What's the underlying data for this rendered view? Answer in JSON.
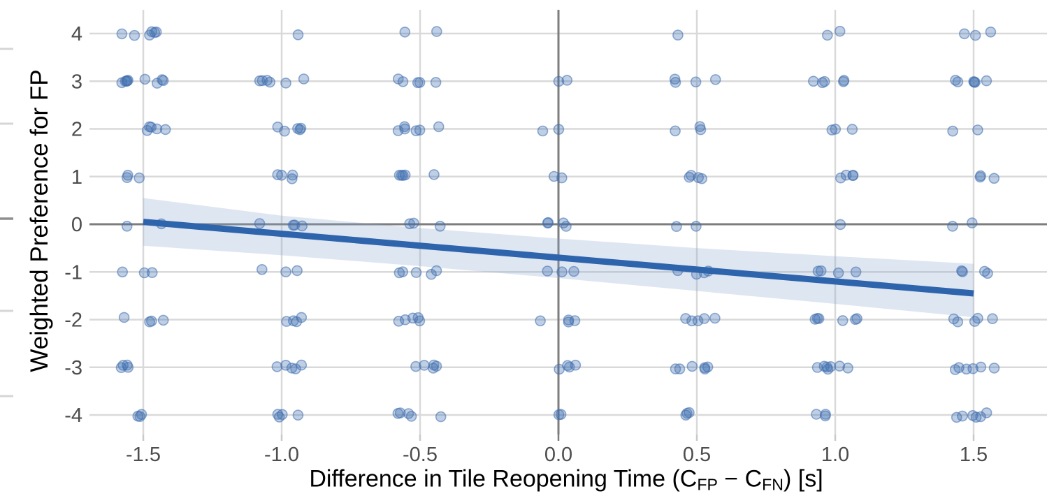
{
  "figure": {
    "y_axis": {
      "title": "Weighted Preference for FP"
    },
    "x_axis": {
      "title_prefix": "Difference in Tile Reopening Time (C",
      "sub_fp": "FP",
      "title_mid": " − C",
      "sub_fn": "FN",
      "title_suffix": ") [s]"
    },
    "cropped_left_ticks": [
      {
        "y": 70,
        "dark": false
      },
      {
        "y": 177,
        "dark": false
      },
      {
        "y": 313,
        "dark": true
      },
      {
        "y": 445,
        "dark": false
      },
      {
        "y": 567,
        "dark": false
      }
    ]
  },
  "chart_data": {
    "type": "scatter",
    "title": "",
    "xlabel": "Difference in Tile Reopening Time (C_FP − C_FN) [s]",
    "ylabel": "Weighted Preference for FP",
    "x_ticks": [
      -1.5,
      -1.0,
      -0.5,
      0.0,
      0.5,
      1.0,
      1.5
    ],
    "x_tick_labels": [
      "-1.5",
      "-1.0",
      "-0.5",
      "0.0",
      "0.5",
      "1.0",
      "1.5"
    ],
    "y_ticks": [
      4,
      3,
      2,
      1,
      0,
      -1,
      -2,
      -3,
      -4
    ],
    "y_tick_labels": [
      "4",
      "3",
      "2",
      "1",
      "0",
      "-1",
      "-2",
      "-3",
      "-4"
    ],
    "xlim": [
      -1.7,
      1.77
    ],
    "ylim": [
      -4.5,
      4.5
    ],
    "grid": true,
    "zero_reference_lines": {
      "x": 0,
      "y": 0
    },
    "points_per_cell": {
      "comment_x_levels": [
        -1.5,
        -1.0,
        -0.5,
        0.0,
        0.5,
        1.0,
        1.5
      ],
      "x_levels": [
        -1.5,
        -1.0,
        -0.5,
        0.0,
        0.5,
        1.0,
        1.5
      ],
      "y_levels": [
        4,
        3,
        2,
        1,
        0,
        -1,
        -2,
        -3,
        -4
      ],
      "counts": [
        [
          6,
          1,
          2,
          0,
          1,
          2,
          3
        ],
        [
          9,
          6,
          5,
          2,
          4,
          5,
          6
        ],
        [
          5,
          5,
          6,
          2,
          3,
          3,
          2
        ],
        [
          3,
          4,
          5,
          2,
          4,
          4,
          3
        ],
        [
          2,
          4,
          3,
          4,
          2,
          1,
          2
        ],
        [
          3,
          3,
          5,
          3,
          4,
          4,
          4
        ],
        [
          4,
          4,
          5,
          4,
          5,
          6,
          5
        ],
        [
          4,
          5,
          5,
          4,
          6,
          7,
          6
        ],
        [
          3,
          4,
          5,
          2,
          3,
          3,
          6
        ]
      ]
    },
    "jitter": {
      "x": 0.08,
      "y": 0.05
    },
    "regression_line": {
      "x": [
        -1.5,
        1.5
      ],
      "y": [
        0.05,
        -1.45
      ]
    },
    "confidence_band": {
      "x": [
        -1.5,
        -1.0,
        -0.5,
        0.0,
        0.5,
        1.0,
        1.5
      ],
      "upper": [
        0.55,
        0.18,
        -0.08,
        -0.3,
        -0.5,
        -0.67,
        -0.83
      ],
      "lower": [
        -0.45,
        -0.65,
        -0.88,
        -1.13,
        -1.4,
        -1.67,
        -1.95
      ]
    },
    "colors": {
      "point": "#3e6eaf",
      "line": "#2d64ab",
      "band": "#89a7cf",
      "grid": "#d9d9d9",
      "zero_line": "#7d7d7d",
      "tick_stub": "#c9c9c9",
      "tick_text": "#4d4d4d",
      "title_text": "#000000",
      "cropped_tick_light": "#d6d6d6",
      "cropped_tick_dark": "#8f8f8f"
    },
    "legend": null
  }
}
